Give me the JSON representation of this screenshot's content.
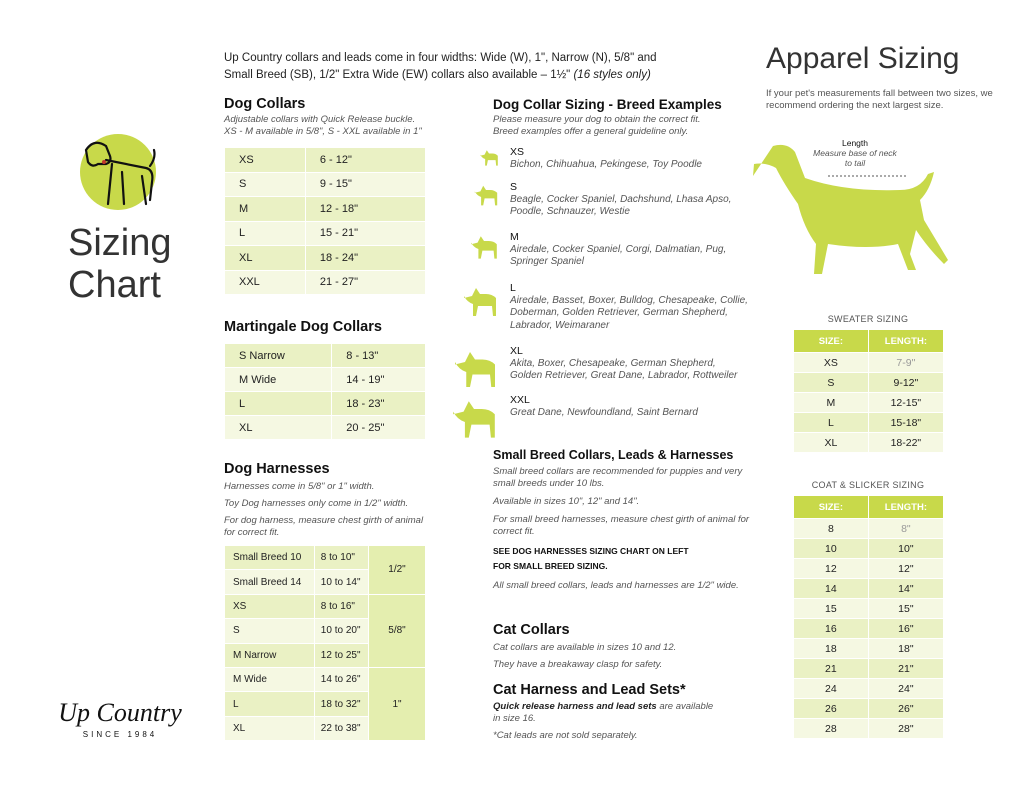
{
  "intro": {
    "line1": "Up Country collars and leads come in four widths: Wide (W), 1\", Narrow (N), 5/8\" and",
    "line2": "Small Breed (SB), 1/2\" Extra Wide (EW) collars also available – 1½\"",
    "line2_italic": "(16 styles only)"
  },
  "sidebar": {
    "title_line1": "Sizing",
    "title_line2": "Chart",
    "logo_text": "Up Country",
    "logo_sub": "SINCE 1984"
  },
  "dog_collars": {
    "title": "Dog Collars",
    "note1": "Adjustable collars with Quick Release buckle.",
    "note2": "XS - M available in 5/8\", S - XXL available in 1\"",
    "rows": [
      [
        "XS",
        "6 - 12\""
      ],
      [
        "S",
        "9 - 15\""
      ],
      [
        "M",
        "12 - 18\""
      ],
      [
        "L",
        "15 - 21\""
      ],
      [
        "XL",
        "18 - 24\""
      ],
      [
        "XXL",
        "21 - 27\""
      ]
    ]
  },
  "martingale": {
    "title": "Martingale Dog Collars",
    "rows": [
      [
        "S Narrow",
        "8 - 13\""
      ],
      [
        "M Wide",
        "14 - 19\""
      ],
      [
        "L",
        "18 - 23\""
      ],
      [
        "XL",
        "20 - 25\""
      ]
    ]
  },
  "harnesses": {
    "title": "Dog Harnesses",
    "note1": "Harnesses come in 5/8\" or 1\" width.",
    "note2": "Toy Dog harnesses only come in 1/2\" width.",
    "note3": "For dog harness, measure chest girth of animal for correct fit.",
    "rows": [
      [
        "Small Breed 10",
        "8 to 10\""
      ],
      [
        "Small Breed 14",
        "10 to 14\""
      ],
      [
        "XS",
        "8 to 16\""
      ],
      [
        "S",
        "10 to 20\""
      ],
      [
        "M Narrow",
        "12 to 25\""
      ],
      [
        "M Wide",
        "14 to 26\""
      ],
      [
        "L",
        "18 to 32\""
      ],
      [
        "XL",
        "22 to 38\""
      ]
    ],
    "widths": [
      "1/2\"",
      "5/8\"",
      "1\""
    ]
  },
  "breeds": {
    "title": "Dog Collar Sizing - Breed Examples",
    "note1": "Please measure your dog to obtain the correct fit.",
    "note2": "Breed examples offer a general guideline only.",
    "items": [
      {
        "size": "XS",
        "examples": "Bichon, Chihuahua, Pekingese, Toy Poodle"
      },
      {
        "size": "S",
        "examples": "Beagle, Cocker Spaniel, Dachshund, Lhasa Apso, Poodle, Schnauzer, Westie"
      },
      {
        "size": "M",
        "examples": "Airedale, Cocker Spaniel, Corgi, Dalmatian, Pug, Springer Spaniel"
      },
      {
        "size": "L",
        "examples": "Airedale, Basset, Boxer, Bulldog, Chesapeake, Collie, Doberman, Golden Retriever, German Shepherd, Labrador, Weimaraner"
      },
      {
        "size": "XL",
        "examples": "Akita, Boxer, Chesapeake, German Shepherd, Golden Retriever, Great Dane, Labrador, Rottweiler"
      },
      {
        "size": "XXL",
        "examples": "Great Dane, Newfoundland, Saint Bernard"
      }
    ]
  },
  "small_breed": {
    "title": "Small Breed Collars, Leads & Harnesses",
    "p1": "Small breed collars are recommended for puppies and very small breeds under 10 lbs.",
    "p2": "Available in sizes 10\", 12\" and 14\".",
    "p3": "For small breed harnesses, measure chest girth of animal for correct fit.",
    "bold1": "SEE DOG HARNESSES SIZING CHART ON LEFT",
    "bold2": "FOR SMALL BREED SIZING.",
    "p4": "All small breed collars, leads and harnesses are 1/2\" wide."
  },
  "cat_collars": {
    "title": "Cat Collars",
    "p1": "Cat collars are available in sizes 10 and 12.",
    "p2": "They have a breakaway clasp for safety."
  },
  "cat_harness": {
    "title": "Cat Harness and Lead Sets*",
    "bold": "Quick release harness and lead sets",
    "p1": " are available in size 16.",
    "p2": "*Cat leads are not sold separately."
  },
  "apparel": {
    "title": "Apparel Sizing",
    "note": "If your pet's measurements fall between two sizes, we recommend ordering the next largest size.",
    "length_label": "Length",
    "length_note": "Measure base of neck to tail",
    "sweater": {
      "title": "SWEATER SIZING",
      "headers": [
        "SIZE:",
        "LENGTH:"
      ],
      "rows": [
        [
          "XS",
          "7-9\""
        ],
        [
          "S",
          "9-12\""
        ],
        [
          "M",
          "12-15\""
        ],
        [
          "L",
          "15-18\""
        ],
        [
          "XL",
          "18-22\""
        ]
      ]
    },
    "coat": {
      "title": "COAT & SLICKER SIZING",
      "headers": [
        "SIZE:",
        "LENGTH:"
      ],
      "rows": [
        [
          "8",
          "8\""
        ],
        [
          "10",
          "10\""
        ],
        [
          "12",
          "12\""
        ],
        [
          "14",
          "14\""
        ],
        [
          "15",
          "15\""
        ],
        [
          "16",
          "16\""
        ],
        [
          "18",
          "18\""
        ],
        [
          "21",
          "21\""
        ],
        [
          "24",
          "24\""
        ],
        [
          "26",
          "26\""
        ],
        [
          "28",
          "28\""
        ]
      ]
    }
  },
  "colors": {
    "accent": "#c8d94a",
    "row_light": "#f5f8e2",
    "row_dark": "#eaf1c4"
  }
}
